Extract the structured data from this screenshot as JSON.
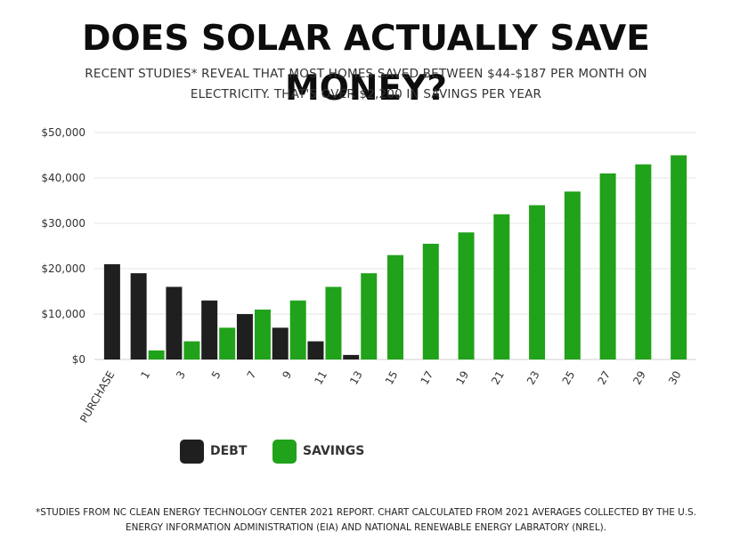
{
  "title": "DOES SOLAR ACTUALLY SAVE MONEY?",
  "subtitle_line1": "RECENT STUDIES* REVEAL THAT MOST HOMES SAVED BETWEEN $44-$187 PER MONTH ON",
  "subtitle_line2": "ELECTRICITY. THAT'S OVER $2,200 IN SAVINGS PER YEAR",
  "footnote_line1": "*STUDIES FROM NC CLEAN ENERGY TECHNOLOGY CENTER 2021 REPORT. CHART CALCULATED FROM 2021 AVERAGES COLLECTED BY THE U.S.",
  "footnote_line2": "ENERGY INFORMATION ADMINISTRATION (EIA) AND NATIONAL RENEWABLE ENERGY LABRATORY (NREL).",
  "colors": {
    "debt": "#1f1f1f",
    "savings": "#20a21a",
    "grid": "#e4e4e4"
  },
  "legend": [
    {
      "key": "debt",
      "label": "DEBT"
    },
    {
      "key": "savings",
      "label": "SAVINGS"
    }
  ],
  "chart_data": {
    "type": "bar",
    "grid": true,
    "legend_position": "bottom-left",
    "ylim": [
      0,
      50000
    ],
    "y_ticks": [
      0,
      10000,
      20000,
      30000,
      40000,
      50000
    ],
    "y_tick_labels": [
      "$0",
      "$10,000",
      "$20,000",
      "$30,000",
      "$40,000",
      "$50,000"
    ],
    "categories": [
      "PURCHASE",
      "1",
      "3",
      "5",
      "7",
      "9",
      "11",
      "13",
      "15",
      "17",
      "19",
      "21",
      "23",
      "25",
      "27",
      "29",
      "30"
    ],
    "series": [
      {
        "name": "DEBT",
        "key": "debt",
        "values": [
          21000,
          19000,
          16000,
          13000,
          10000,
          7000,
          4000,
          1000,
          null,
          null,
          null,
          null,
          null,
          null,
          null,
          null,
          null
        ]
      },
      {
        "name": "SAVINGS",
        "key": "savings",
        "values": [
          null,
          2000,
          4000,
          7000,
          11000,
          13000,
          16000,
          19000,
          23000,
          25500,
          28000,
          32000,
          34000,
          37000,
          41000,
          43000,
          45000
        ]
      }
    ]
  }
}
